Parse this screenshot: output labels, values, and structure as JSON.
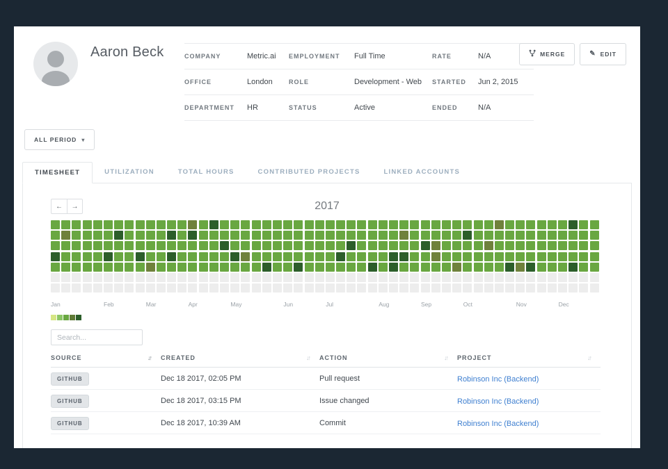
{
  "header": {
    "name": "Aaron Beck",
    "merge_label": "MERGE",
    "edit_label": "EDIT",
    "info_rows": [
      [
        {
          "label": "COMPANY",
          "value": "Metric.ai"
        },
        {
          "label": "EMPLOYMENT",
          "value": "Full Time"
        },
        {
          "label": "RATE",
          "value": "N/A"
        }
      ],
      [
        {
          "label": "OFFICE",
          "value": "London"
        },
        {
          "label": "ROLE",
          "value": "Development - Web"
        },
        {
          "label": "STARTED",
          "value": "Jun 2, 2015"
        }
      ],
      [
        {
          "label": "DEPARTMENT",
          "value": "HR"
        },
        {
          "label": "STATUS",
          "value": "Active"
        },
        {
          "label": "ENDED",
          "value": "N/A"
        }
      ]
    ]
  },
  "period_filter": {
    "label": "ALL PERIOD"
  },
  "tabs": [
    {
      "label": "TIMESHEET",
      "active": true
    },
    {
      "label": "UTILIZATION",
      "active": false
    },
    {
      "label": "TOTAL HOURS",
      "active": false
    },
    {
      "label": "CONTRIBUTED PROJECTS",
      "active": false
    },
    {
      "label": "LINKED ACCOUNTS",
      "active": false
    }
  ],
  "timesheet": {
    "year": "2017",
    "months": [
      {
        "label": "Jan",
        "week": 0
      },
      {
        "label": "Feb",
        "week": 5
      },
      {
        "label": "Mar",
        "week": 9
      },
      {
        "label": "Apr",
        "week": 13
      },
      {
        "label": "May",
        "week": 17
      },
      {
        "label": "Jun",
        "week": 22
      },
      {
        "label": "Jul",
        "week": 26
      },
      {
        "label": "Aug",
        "week": 31
      },
      {
        "label": "Sep",
        "week": 35
      },
      {
        "label": "Oct",
        "week": 39
      },
      {
        "label": "Nov",
        "week": 44
      },
      {
        "label": "Dec",
        "week": 48
      }
    ],
    "heatmap": {
      "weeks": 52,
      "palette": {
        "0": "#ededed",
        "2": "#69a741",
        "3": "#6f813c",
        "4": "#2c5e2a"
      },
      "rows": [
        "2222222222222324222222222222222222222222223222222422",
        "2322224222242422222222222222222223222224222222222222",
        "2222222222222222422222222222422222243222232222222222",
        "4222242242242222243222222224222244223222222222222222",
        "2222222223222222222242242222224242222232222434222422",
        "0000000000000000000000000000000000000000000000000000",
        "0000000000000000000000000000000000000000000000000000"
      ]
    },
    "legend_colors": [
      "#d6e685",
      "#8cc665",
      "#69a741",
      "#5f7a36",
      "#2c5e2a"
    ],
    "search_placeholder": "Search...",
    "activity_table": {
      "columns": [
        {
          "label": "SOURCE",
          "active_sort": true
        },
        {
          "label": "CREATED",
          "active_sort": false
        },
        {
          "label": "ACTION",
          "active_sort": false
        },
        {
          "label": "PROJECT",
          "active_sort": false
        }
      ],
      "rows": [
        {
          "source": "GITHUB",
          "created": "Dec 18 2017, 02:05 PM",
          "action": "Pull request",
          "project": "Robinson Inc (Backend)"
        },
        {
          "source": "GITHUB",
          "created": "Dec 18 2017, 03:15 PM",
          "action": "Issue changed",
          "project": "Robinson Inc (Backend)"
        },
        {
          "source": "GITHUB",
          "created": "Dec 18 2017, 10:39 AM",
          "action": "Commit",
          "project": "Robinson Inc (Backend)"
        }
      ]
    }
  }
}
